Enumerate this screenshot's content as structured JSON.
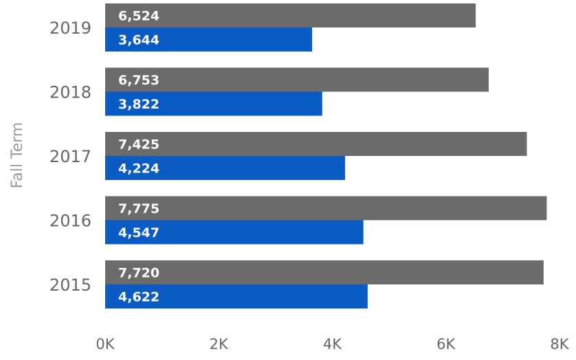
{
  "chart_data": {
    "type": "bar",
    "orientation": "horizontal",
    "ylabel": "Fall Term",
    "xlabel": "",
    "categories": [
      "2019",
      "2018",
      "2017",
      "2016",
      "2015"
    ],
    "series": [
      {
        "color": "#6b6b6b",
        "values": [
          6524,
          6753,
          7425,
          7775,
          7720
        ],
        "labels": [
          "6,524",
          "6,753",
          "7,425",
          "7,775",
          "7,720"
        ]
      },
      {
        "color": "#0a5bc4",
        "values": [
          3644,
          3822,
          4224,
          4547,
          4622
        ],
        "labels": [
          "3,644",
          "3,822",
          "4,224",
          "4,547",
          "4,622"
        ]
      }
    ],
    "xlim": [
      0,
      8000
    ],
    "xticks": [
      0,
      2000,
      4000,
      6000,
      8000
    ],
    "xtick_labels": [
      "0K",
      "2K",
      "4K",
      "6K",
      "8K"
    ],
    "grid": false,
    "legend": "none"
  }
}
